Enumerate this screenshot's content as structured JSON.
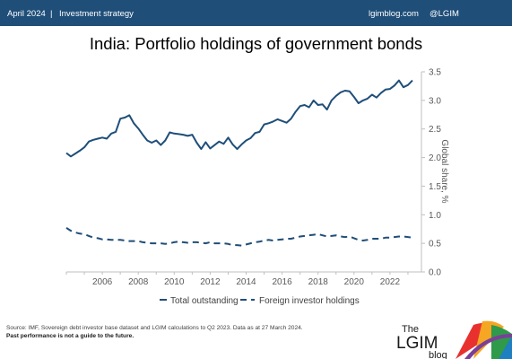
{
  "header": {
    "date": "April 2024",
    "separator": "|",
    "section": "Investment strategy",
    "site": "lgimblog.com",
    "handle": "@LGIM"
  },
  "colors": {
    "brand_navy": "#1f4e79",
    "series": "#1f4e79",
    "axis": "#bfbfbf",
    "logo_text": "#1a1a1a"
  },
  "footer": {
    "source": "Source: IMF, Sovereign debt investor base dataset and LGIM calculations to Q2 2023. Data as at 27 March 2024.",
    "disclaimer": "Past performance is not a guide to the future."
  },
  "logo": {
    "the": "The",
    "name": "LGIM",
    "blog": "blog"
  },
  "chart_data": {
    "type": "line",
    "title": "India: Portfolio holdings of government bonds",
    "ylabel": "Global share, %",
    "xlabel": "",
    "x_tick_labels": [
      "2006",
      "2008",
      "2010",
      "2012",
      "2014",
      "2016",
      "2018",
      "2020",
      "2022"
    ],
    "y_tick_labels": [
      "0.0",
      "0.5",
      "1.0",
      "1.5",
      "2.0",
      "2.5",
      "3.0",
      "3.5"
    ],
    "xlim": [
      2004.0,
      2023.75
    ],
    "ylim": [
      0,
      3.5
    ],
    "grid": false,
    "legend_position": "bottom",
    "x": [
      2004.0,
      2004.25,
      2004.5,
      2004.75,
      2005.0,
      2005.25,
      2005.5,
      2005.75,
      2006.0,
      2006.25,
      2006.5,
      2006.75,
      2007.0,
      2007.25,
      2007.5,
      2007.75,
      2008.0,
      2008.25,
      2008.5,
      2008.75,
      2009.0,
      2009.25,
      2009.5,
      2009.75,
      2010.0,
      2010.25,
      2010.5,
      2010.75,
      2011.0,
      2011.25,
      2011.5,
      2011.75,
      2012.0,
      2012.25,
      2012.5,
      2012.75,
      2013.0,
      2013.25,
      2013.5,
      2013.75,
      2014.0,
      2014.25,
      2014.5,
      2014.75,
      2015.0,
      2015.25,
      2015.5,
      2015.75,
      2016.0,
      2016.25,
      2016.5,
      2016.75,
      2017.0,
      2017.25,
      2017.5,
      2017.75,
      2018.0,
      2018.25,
      2018.5,
      2018.75,
      2019.0,
      2019.25,
      2019.5,
      2019.75,
      2020.0,
      2020.25,
      2020.5,
      2020.75,
      2021.0,
      2021.25,
      2021.5,
      2021.75,
      2022.0,
      2022.25,
      2022.5,
      2022.75,
      2023.0,
      2023.25
    ],
    "series": [
      {
        "name": "Total outstanding",
        "style": "solid",
        "values": [
          2.08,
          2.02,
          2.07,
          2.12,
          2.18,
          2.28,
          2.31,
          2.33,
          2.35,
          2.33,
          2.42,
          2.45,
          2.68,
          2.7,
          2.74,
          2.6,
          2.51,
          2.4,
          2.3,
          2.26,
          2.3,
          2.22,
          2.3,
          2.44,
          2.42,
          2.41,
          2.4,
          2.38,
          2.4,
          2.26,
          2.15,
          2.27,
          2.16,
          2.22,
          2.28,
          2.24,
          2.35,
          2.23,
          2.15,
          2.23,
          2.3,
          2.34,
          2.43,
          2.45,
          2.58,
          2.6,
          2.63,
          2.67,
          2.64,
          2.61,
          2.68,
          2.8,
          2.9,
          2.92,
          2.88,
          3.0,
          2.92,
          2.93,
          2.84,
          3.0,
          3.08,
          3.14,
          3.17,
          3.16,
          3.06,
          2.95,
          3.0,
          3.03,
          3.1,
          3.05,
          3.13,
          3.19,
          3.2,
          3.26,
          3.35,
          3.23,
          3.27,
          3.35
        ]
      },
      {
        "name": "Foreign investor holdings",
        "style": "dashed",
        "values": [
          0.77,
          0.72,
          0.69,
          0.67,
          0.66,
          0.63,
          0.6,
          0.59,
          0.57,
          0.57,
          0.56,
          0.56,
          0.56,
          0.55,
          0.54,
          0.54,
          0.54,
          0.52,
          0.51,
          0.5,
          0.5,
          0.5,
          0.49,
          0.5,
          0.52,
          0.53,
          0.52,
          0.51,
          0.52,
          0.52,
          0.51,
          0.5,
          0.52,
          0.5,
          0.5,
          0.5,
          0.49,
          0.47,
          0.47,
          0.46,
          0.48,
          0.5,
          0.52,
          0.53,
          0.55,
          0.56,
          0.55,
          0.56,
          0.57,
          0.58,
          0.58,
          0.6,
          0.62,
          0.63,
          0.64,
          0.65,
          0.66,
          0.64,
          0.62,
          0.63,
          0.64,
          0.62,
          0.61,
          0.62,
          0.59,
          0.56,
          0.55,
          0.56,
          0.58,
          0.58,
          0.58,
          0.6,
          0.6,
          0.61,
          0.62,
          0.62,
          0.61,
          0.6
        ]
      }
    ]
  }
}
